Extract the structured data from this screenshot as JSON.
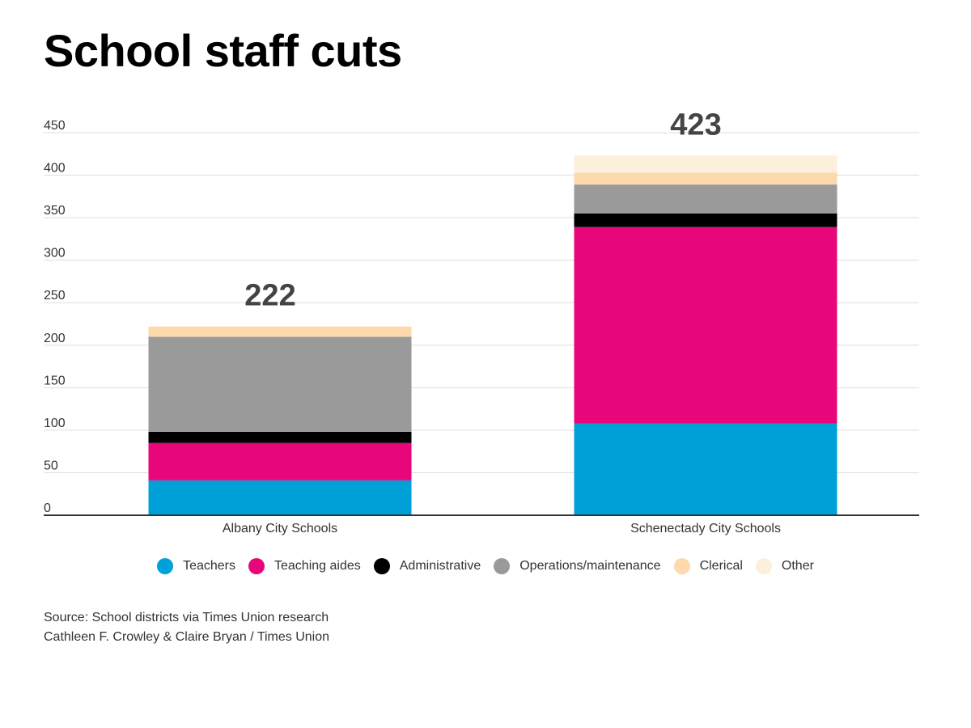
{
  "title": "School staff cuts",
  "chart_data": {
    "type": "bar",
    "stacked": true,
    "title": "School staff cuts",
    "categories": [
      "Albany City Schools",
      "Schenectady City Schools"
    ],
    "totals": [
      "222",
      "423"
    ],
    "ylim": [
      0,
      450
    ],
    "yticks": [
      0,
      50,
      100,
      150,
      200,
      250,
      300,
      350,
      400,
      450
    ],
    "grid": true,
    "legend_position": "bottom",
    "series": [
      {
        "name": "Teachers",
        "color": "#00a0d8",
        "values": [
          41,
          108
        ]
      },
      {
        "name": "Teaching aides",
        "color": "#e8077a",
        "values": [
          44,
          231
        ]
      },
      {
        "name": "Administrative",
        "color": "#000000",
        "values": [
          13,
          16
        ]
      },
      {
        "name": "Operations/maintenance",
        "color": "#9a9a9a",
        "values": [
          112,
          34
        ]
      },
      {
        "name": "Clerical",
        "color": "#fdd9ac",
        "values": [
          12,
          14
        ]
      },
      {
        "name": "Other",
        "color": "#fcf0dd",
        "values": [
          0,
          20
        ]
      }
    ]
  },
  "source": {
    "line1": "Source: School districts via Times Union research",
    "line2": "Cathleen F. Crowley & Claire Bryan / Times Union"
  }
}
